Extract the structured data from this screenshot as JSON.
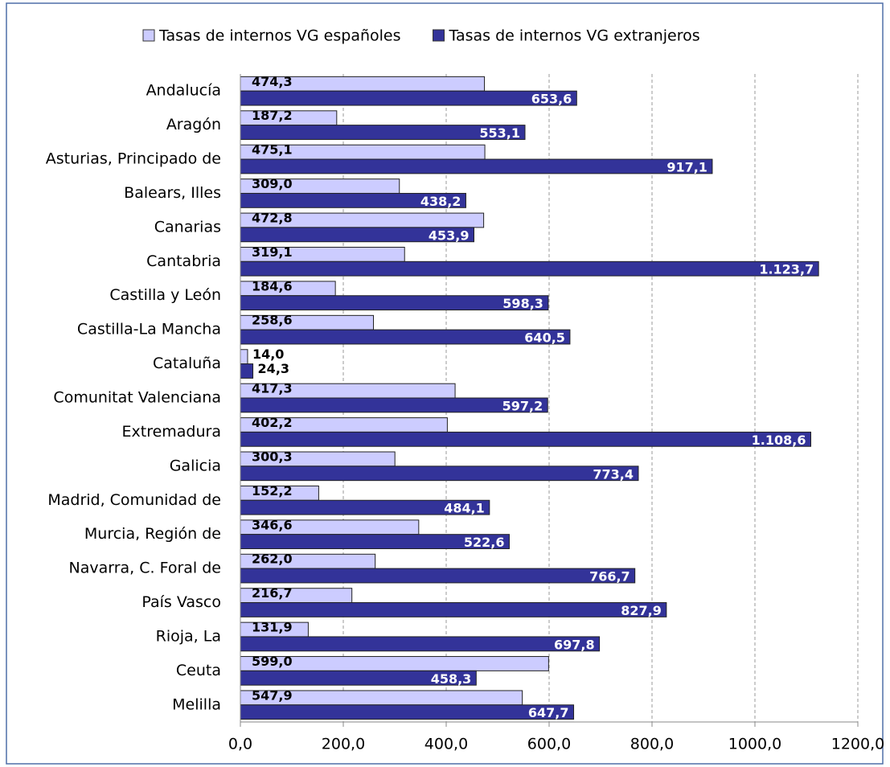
{
  "chart_data": {
    "type": "bar",
    "orientation": "horizontal",
    "categories": [
      "Andalucía",
      "Aragón",
      "Asturias, Principado de",
      "Balears, Illes",
      "Canarias",
      "Cantabria",
      "Castilla y León",
      "Castilla-La Mancha",
      "Cataluña",
      "Comunitat Valenciana",
      "Extremadura",
      "Galicia",
      "Madrid, Comunidad de",
      "Murcia, Región de",
      "Navarra, C. Foral de",
      "País Vasco",
      "Rioja, La",
      "Ceuta",
      "Melilla"
    ],
    "series": [
      {
        "name": "Tasas de internos VG españoles",
        "color": "#ccccff",
        "values": [
          474.3,
          187.2,
          475.1,
          309.0,
          472.8,
          319.1,
          184.6,
          258.6,
          14.0,
          417.3,
          402.2,
          300.3,
          152.2,
          346.6,
          262.0,
          216.7,
          131.9,
          599.0,
          547.9
        ],
        "value_labels": [
          "474,3",
          "187,2",
          "475,1",
          "309,0",
          "472,8",
          "319,1",
          "184,6",
          "258,6",
          "14,0",
          "417,3",
          "402,2",
          "300,3",
          "152,2",
          "346,6",
          "262,0",
          "216,7",
          "131,9",
          "599,0",
          "547,9"
        ]
      },
      {
        "name": "Tasas de internos VG extranjeros",
        "color": "#333399",
        "values": [
          653.6,
          553.1,
          917.1,
          438.2,
          453.9,
          1123.7,
          598.3,
          640.5,
          24.3,
          597.2,
          1108.6,
          773.4,
          484.1,
          522.6,
          766.7,
          827.9,
          697.8,
          458.3,
          647.7
        ],
        "value_labels": [
          "653,6",
          "553,1",
          "917,1",
          "438,2",
          "453,9",
          "1.123,7",
          "598,3",
          "640,5",
          "24,3",
          "597,2",
          "1.108,6",
          "773,4",
          "484,1",
          "522,6",
          "766,7",
          "827,9",
          "697,8",
          "458,3",
          "647,7"
        ]
      }
    ],
    "xlim": [
      0,
      1200
    ],
    "xticks": [
      {
        "value": 0,
        "label": "0,0"
      },
      {
        "value": 200,
        "label": "200,0"
      },
      {
        "value": 400,
        "label": "400,0"
      },
      {
        "value": 600,
        "label": "600,0"
      },
      {
        "value": 800,
        "label": "800,0"
      },
      {
        "value": 1000,
        "label": "1000,0"
      },
      {
        "value": 1200,
        "label": "1200,0"
      }
    ],
    "grid": true,
    "legend": "top"
  }
}
